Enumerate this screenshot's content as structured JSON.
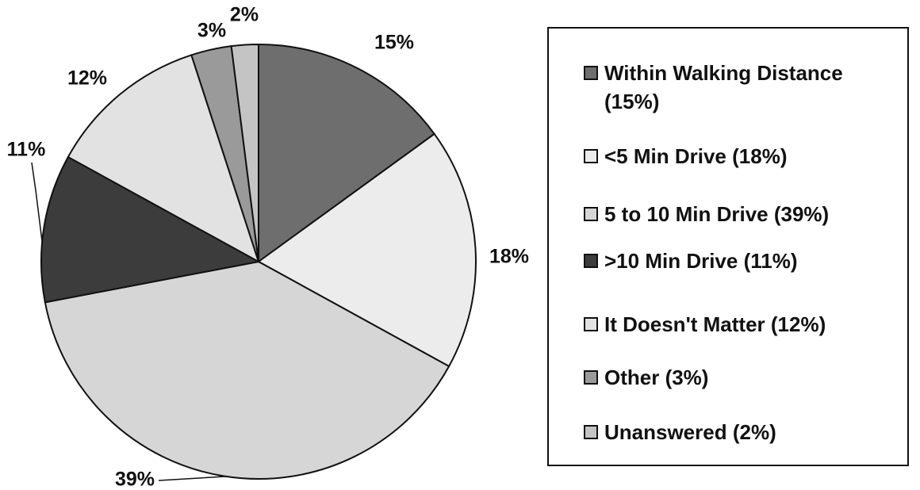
{
  "chart_data": {
    "type": "pie",
    "categories": [
      "Within Walking Distance (15%)",
      "<5 Min Drive (18%)",
      "5 to 10 Min Drive (39%)",
      ">10 Min Drive (11%)",
      "It Doesn't Matter (12%)",
      "Other (3%)",
      "Unanswered (2%)"
    ],
    "values": [
      15,
      18,
      39,
      11,
      12,
      3,
      2
    ],
    "value_labels": [
      "15%",
      "18%",
      "39%",
      "11%",
      "12%",
      "3%",
      "2%"
    ],
    "colors": [
      "#6e6e6e",
      "#ececec",
      "#d6d6d6",
      "#3c3c3c",
      "#e2e2e2",
      "#9a9a9a",
      "#c4c4c4"
    ],
    "legend": "right"
  }
}
